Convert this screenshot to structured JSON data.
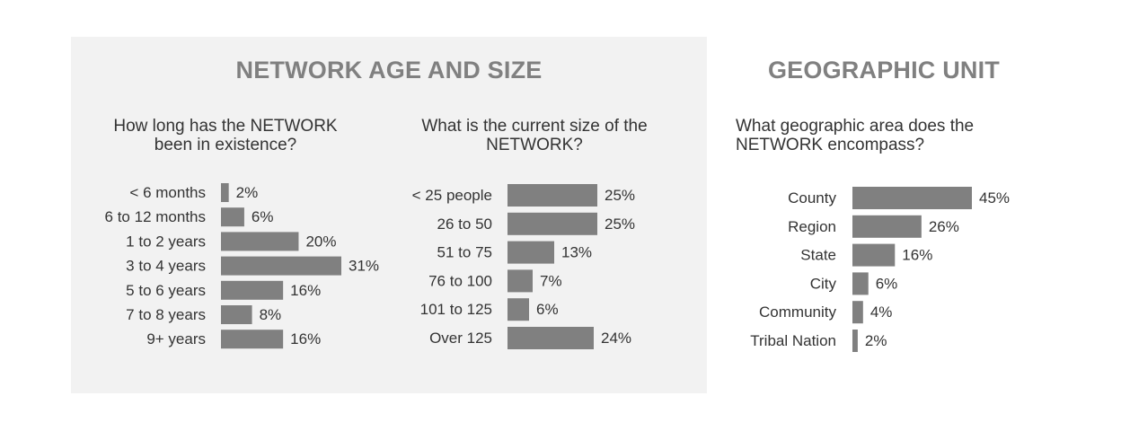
{
  "sections": {
    "left": {
      "title": "NETWORK AGE AND SIZE"
    },
    "right": {
      "title": "GEOGRAPHIC UNIT"
    }
  },
  "questions": {
    "age": "How long has the NETWORK\nbeen in existence?",
    "size": "What is the current size of the\nNETWORK?",
    "geo": "What geographic area does the\nNETWORK encompass?"
  },
  "colors": {
    "bar": "#808080",
    "panel": "#f2f2f2",
    "title": "#808080",
    "text": "#333333"
  },
  "chart_data": [
    {
      "type": "bar",
      "orientation": "horizontal",
      "title": "How long has the NETWORK been in existence?",
      "categories": [
        "< 6 months",
        "6 to 12 months",
        "1 to 2 years",
        "3 to 4 years",
        "5 to 6 years",
        "7 to 8 years",
        "9+ years"
      ],
      "values": [
        2,
        6,
        20,
        31,
        16,
        8,
        16
      ],
      "value_labels": [
        "2%",
        "6%",
        "20%",
        "31%",
        "16%",
        "8%",
        "16%"
      ],
      "xlim": [
        0,
        31
      ]
    },
    {
      "type": "bar",
      "orientation": "horizontal",
      "title": "What is the current size of the NETWORK?",
      "categories": [
        "< 25 people",
        "26 to 50",
        "51 to 75",
        "76 to 100",
        "101 to 125",
        "Over 125"
      ],
      "values": [
        25,
        25,
        13,
        7,
        6,
        24
      ],
      "value_labels": [
        "25%",
        "25%",
        "13%",
        "7%",
        "6%",
        "24%"
      ],
      "xlim": [
        0,
        25
      ]
    },
    {
      "type": "bar",
      "orientation": "horizontal",
      "title": "What geographic area does the NETWORK encompass?",
      "categories": [
        "County",
        "Region",
        "State",
        "City",
        "Community",
        "Tribal Nation"
      ],
      "values": [
        45,
        26,
        16,
        6,
        4,
        2
      ],
      "value_labels": [
        "45%",
        "26%",
        "16%",
        "6%",
        "4%",
        "2%"
      ],
      "xlim": [
        0,
        45
      ]
    }
  ]
}
